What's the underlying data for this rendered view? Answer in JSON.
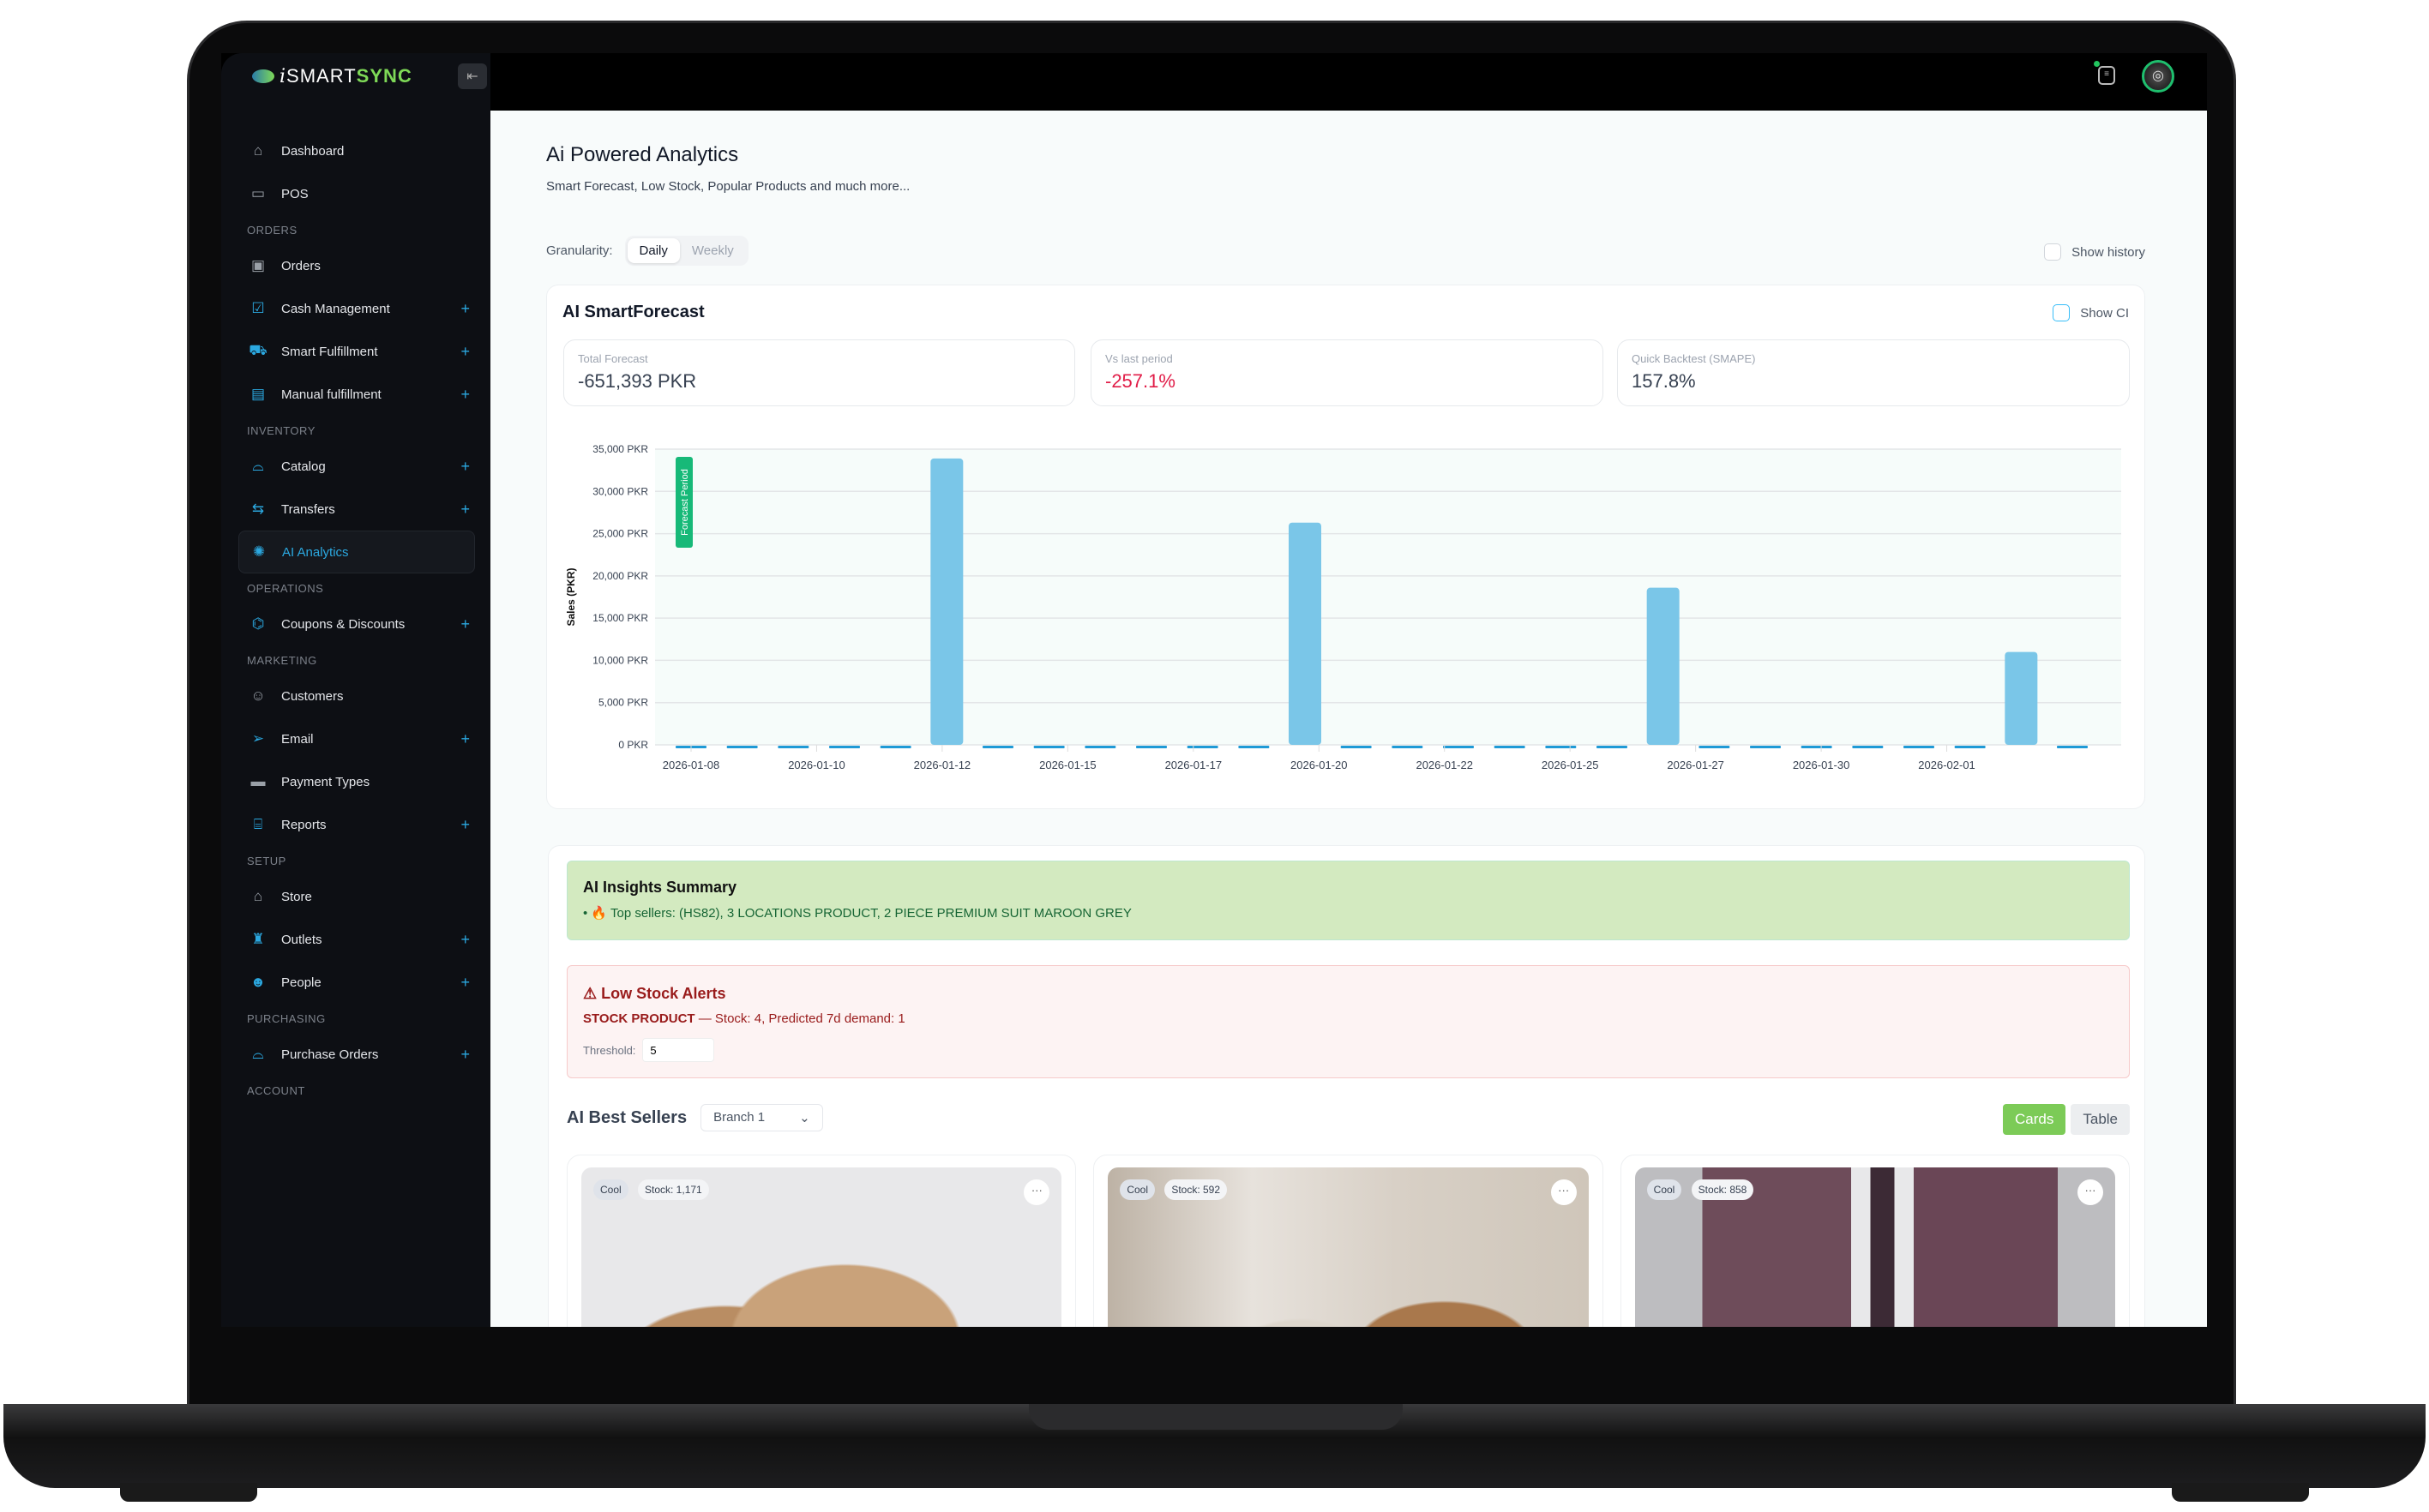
{
  "app": {
    "logo_prefix": "i",
    "logo_smart": "SMART",
    "logo_sync": "SYNC",
    "collapse_icon": "collapse-left-icon"
  },
  "sidebar": {
    "items": [
      {
        "type": "item",
        "label": "Dashboard",
        "icon": "⌂",
        "expand": false
      },
      {
        "type": "item",
        "label": "POS",
        "icon": "▭",
        "expand": false
      },
      {
        "type": "header",
        "label": "ORDERS"
      },
      {
        "type": "item",
        "label": "Orders",
        "icon": "▣",
        "expand": false
      },
      {
        "type": "item",
        "label": "Cash Management",
        "icon": "☑",
        "expand": true,
        "blue": true
      },
      {
        "type": "item",
        "label": "Smart Fulfillment",
        "icon": "⛟",
        "expand": true,
        "blue": true
      },
      {
        "type": "item",
        "label": "Manual fulfillment",
        "icon": "▤",
        "expand": true,
        "blue": true
      },
      {
        "type": "header",
        "label": "INVENTORY"
      },
      {
        "type": "item",
        "label": "Catalog",
        "icon": "⌓",
        "expand": true,
        "blue": true
      },
      {
        "type": "item",
        "label": "Transfers",
        "icon": "⇆",
        "expand": true,
        "blue": true
      },
      {
        "type": "item",
        "label": "AI Analytics",
        "icon": "✺",
        "expand": false,
        "active": true,
        "blue": true
      },
      {
        "type": "header",
        "label": "OPERATIONS"
      },
      {
        "type": "item",
        "label": "Coupons & Discounts",
        "icon": "⌬",
        "expand": true,
        "blue": true
      },
      {
        "type": "header",
        "label": "MARKETING"
      },
      {
        "type": "item",
        "label": "Customers",
        "icon": "☺",
        "expand": false
      },
      {
        "type": "item",
        "label": "Email",
        "icon": "➢",
        "expand": true,
        "blue": true
      },
      {
        "type": "item",
        "label": "Payment Types",
        "icon": "▬",
        "expand": false
      },
      {
        "type": "item",
        "label": "Reports",
        "icon": "⌸",
        "expand": true,
        "blue": true
      },
      {
        "type": "header",
        "label": "SETUP"
      },
      {
        "type": "item",
        "label": "Store",
        "icon": "⌂",
        "expand": false
      },
      {
        "type": "item",
        "label": "Outlets",
        "icon": "♜",
        "expand": true,
        "blue": true
      },
      {
        "type": "item",
        "label": "People",
        "icon": "☻",
        "expand": true,
        "blue": true
      },
      {
        "type": "header",
        "label": "PURCHASING"
      },
      {
        "type": "item",
        "label": "Purchase Orders",
        "icon": "⌓",
        "expand": true,
        "blue": true
      },
      {
        "type": "header",
        "label": "ACCOUNT"
      }
    ],
    "plus": "+"
  },
  "topbar": {
    "notification_icon": "notification-icon",
    "avatar_icon": "avatar",
    "status_color": "#22c55e"
  },
  "page": {
    "title": "Ai Powered Analytics",
    "subtitle": "Smart Forecast, Low Stock, Popular Products and much more...",
    "granularity_label": "Granularity:",
    "granularity_options": [
      "Daily",
      "Weekly"
    ],
    "granularity_selected": "Daily",
    "show_history": "Show history"
  },
  "forecast": {
    "title": "AI SmartForecast",
    "show_ci": "Show CI",
    "stats": [
      {
        "label": "Total Forecast",
        "value": "-651,393 PKR"
      },
      {
        "label": "Vs last period",
        "value": "-257.1%"
      },
      {
        "label": "Quick Backtest (SMAPE)",
        "value": "157.8%"
      }
    ],
    "forecast_badge": "Forecast Period"
  },
  "chart_data": {
    "type": "bar",
    "ylabel": "Sales (PKR)",
    "ylim": [
      0,
      35000
    ],
    "yticks": [
      "0 PKR",
      "5,000 PKR",
      "10,000 PKR",
      "15,000 PKR",
      "20,000 PKR",
      "25,000 PKR",
      "30,000 PKR",
      "35,000 PKR"
    ],
    "xticks": [
      "2026-01-08",
      "2026-01-10",
      "2026-01-12",
      "2026-01-15",
      "2026-01-17",
      "2026-01-20",
      "2026-01-22",
      "2026-01-25",
      "2026-01-27",
      "2026-01-30",
      "2026-02-01"
    ],
    "values": [
      0,
      0,
      0,
      0,
      0,
      33900,
      0,
      0,
      0,
      0,
      0,
      0,
      26300,
      0,
      0,
      0,
      0,
      0,
      0,
      18600,
      0,
      0,
      0,
      0,
      0,
      0,
      11000,
      0
    ],
    "bar_color": "#7ac6e8",
    "zero_marker_color": "#1f9ad6",
    "grid": true
  },
  "insights": {
    "title": "AI Insights Summary",
    "line": "• 🔥 Top sellers: (HS82), 3 LOCATIONS PRODUCT, 2 PIECE PREMIUM SUIT MAROON GREY"
  },
  "low_stock": {
    "title": "⚠ Low Stock Alerts",
    "product": "STOCK PRODUCT",
    "detail": " — Stock: 4, Predicted 7d demand: 1",
    "threshold_label": "Threshold:",
    "threshold_value": "5"
  },
  "best_sellers": {
    "title": "AI Best Sellers",
    "branch": "Branch 1",
    "view_cards": "Cards",
    "view_table": "Table",
    "products": [
      {
        "tag": "Cool",
        "stock": "Stock: 1,171",
        "more": "···"
      },
      {
        "tag": "Cool",
        "stock": "Stock: 592",
        "more": "···"
      },
      {
        "tag": "Cool",
        "stock": "Stock: 858",
        "more": "···"
      }
    ]
  }
}
